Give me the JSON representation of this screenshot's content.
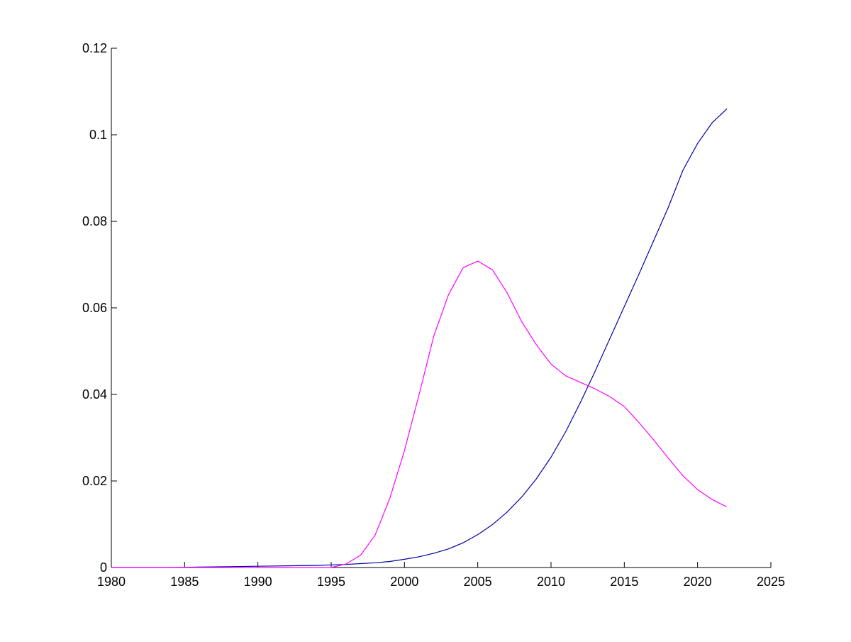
{
  "chart_data": {
    "type": "line",
    "title": "",
    "xlabel": "",
    "ylabel": "",
    "xlim": [
      1980,
      2025
    ],
    "ylim": [
      0,
      0.12
    ],
    "x_ticks": [
      "1980",
      "1985",
      "1990",
      "1995",
      "2000",
      "2005",
      "2010",
      "2015",
      "2020",
      "2025"
    ],
    "y_ticks": [
      "0",
      "0.02",
      "0.04",
      "0.06",
      "0.08",
      "0.1",
      "0.12"
    ],
    "grid": false,
    "legend": "none",
    "series": [
      {
        "color": "#0000a0",
        "x": [
          1980,
          1982,
          1984,
          1986,
          1988,
          1990,
          1992,
          1994,
          1995,
          1996,
          1997,
          1998,
          1999,
          2000,
          2001,
          2002,
          2003,
          2004,
          2005,
          2006,
          2007,
          2008,
          2009,
          2010,
          2011,
          2012,
          2013,
          2014,
          2015,
          2016,
          2017,
          2018,
          2019,
          2020,
          2021,
          2022
        ],
        "y": [
          0,
          0,
          0,
          0.0001,
          0.0002,
          0.0003,
          0.0004,
          0.0005,
          0.0006,
          0.0007,
          0.0009,
          0.0011,
          0.0014,
          0.0019,
          0.0025,
          0.0033,
          0.0043,
          0.0057,
          0.0076,
          0.0099,
          0.0128,
          0.0163,
          0.0205,
          0.0255,
          0.0314,
          0.0381,
          0.0453,
          0.0528,
          0.0603,
          0.0678,
          0.0755,
          0.0832,
          0.0918,
          0.098,
          0.1028,
          0.106
        ]
      },
      {
        "color": "#ff00ff",
        "x": [
          1980,
          1982,
          1984,
          1986,
          1988,
          1990,
          1992,
          1994,
          1995,
          1996,
          1997,
          1998,
          1999,
          2000,
          2001,
          2002,
          2003,
          2004,
          2005,
          2006,
          2007,
          2008,
          2009,
          2010,
          2011,
          2012,
          2013,
          2014,
          2015,
          2016,
          2017,
          2018,
          2019,
          2020,
          2021,
          2022
        ],
        "y": [
          0,
          0,
          0,
          0,
          0,
          0,
          0,
          0,
          0,
          0.0008,
          0.0028,
          0.0075,
          0.016,
          0.027,
          0.04,
          0.0535,
          0.063,
          0.0693,
          0.0708,
          0.0688,
          0.0635,
          0.0568,
          0.0515,
          0.047,
          0.0443,
          0.0428,
          0.0413,
          0.0395,
          0.0372,
          0.0335,
          0.0295,
          0.0253,
          0.0212,
          0.018,
          0.0157,
          0.014
        ]
      }
    ]
  }
}
